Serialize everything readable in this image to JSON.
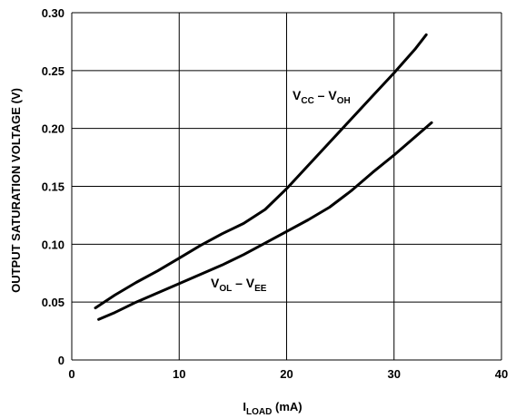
{
  "chart_data": {
    "type": "line",
    "xlim": [
      0,
      40
    ],
    "ylim": [
      0,
      0.3
    ],
    "x_ticks": [
      0,
      10,
      20,
      30,
      40
    ],
    "y_ticks": [
      "0",
      "0.05",
      "0.10",
      "0.15",
      "0.20",
      "0.25",
      "0.30"
    ],
    "xlabel": {
      "main": "I",
      "sub": "LOAD",
      "suffix": " (mA)"
    },
    "ylabel": "OUTPUT SATURATION VOLTAGE (V)",
    "grid": true,
    "series": [
      {
        "name": "VCC – VOH",
        "label_parts": {
          "a": "V",
          "a_sub": "CC",
          "mid": " – V",
          "b_sub": "OH"
        },
        "x": [
          2.2,
          4,
          6,
          8,
          10,
          12,
          14,
          16,
          18,
          20,
          22,
          24,
          26,
          28,
          30,
          32,
          33
        ],
        "y": [
          0.045,
          0.056,
          0.067,
          0.077,
          0.088,
          0.099,
          0.109,
          0.118,
          0.13,
          0.148,
          0.168,
          0.188,
          0.208,
          0.228,
          0.248,
          0.269,
          0.281
        ]
      },
      {
        "name": "VOL – VEE",
        "label_parts": {
          "a": "V",
          "a_sub": "OL",
          "mid": " – V",
          "b_sub": "EE"
        },
        "x": [
          2.5,
          4,
          6,
          8,
          10,
          12,
          14,
          16,
          18,
          20,
          22,
          24,
          26,
          28,
          30,
          32,
          33.5
        ],
        "y": [
          0.035,
          0.041,
          0.05,
          0.058,
          0.066,
          0.074,
          0.082,
          0.091,
          0.101,
          0.111,
          0.121,
          0.132,
          0.146,
          0.162,
          0.177,
          0.193,
          0.205
        ]
      }
    ]
  }
}
